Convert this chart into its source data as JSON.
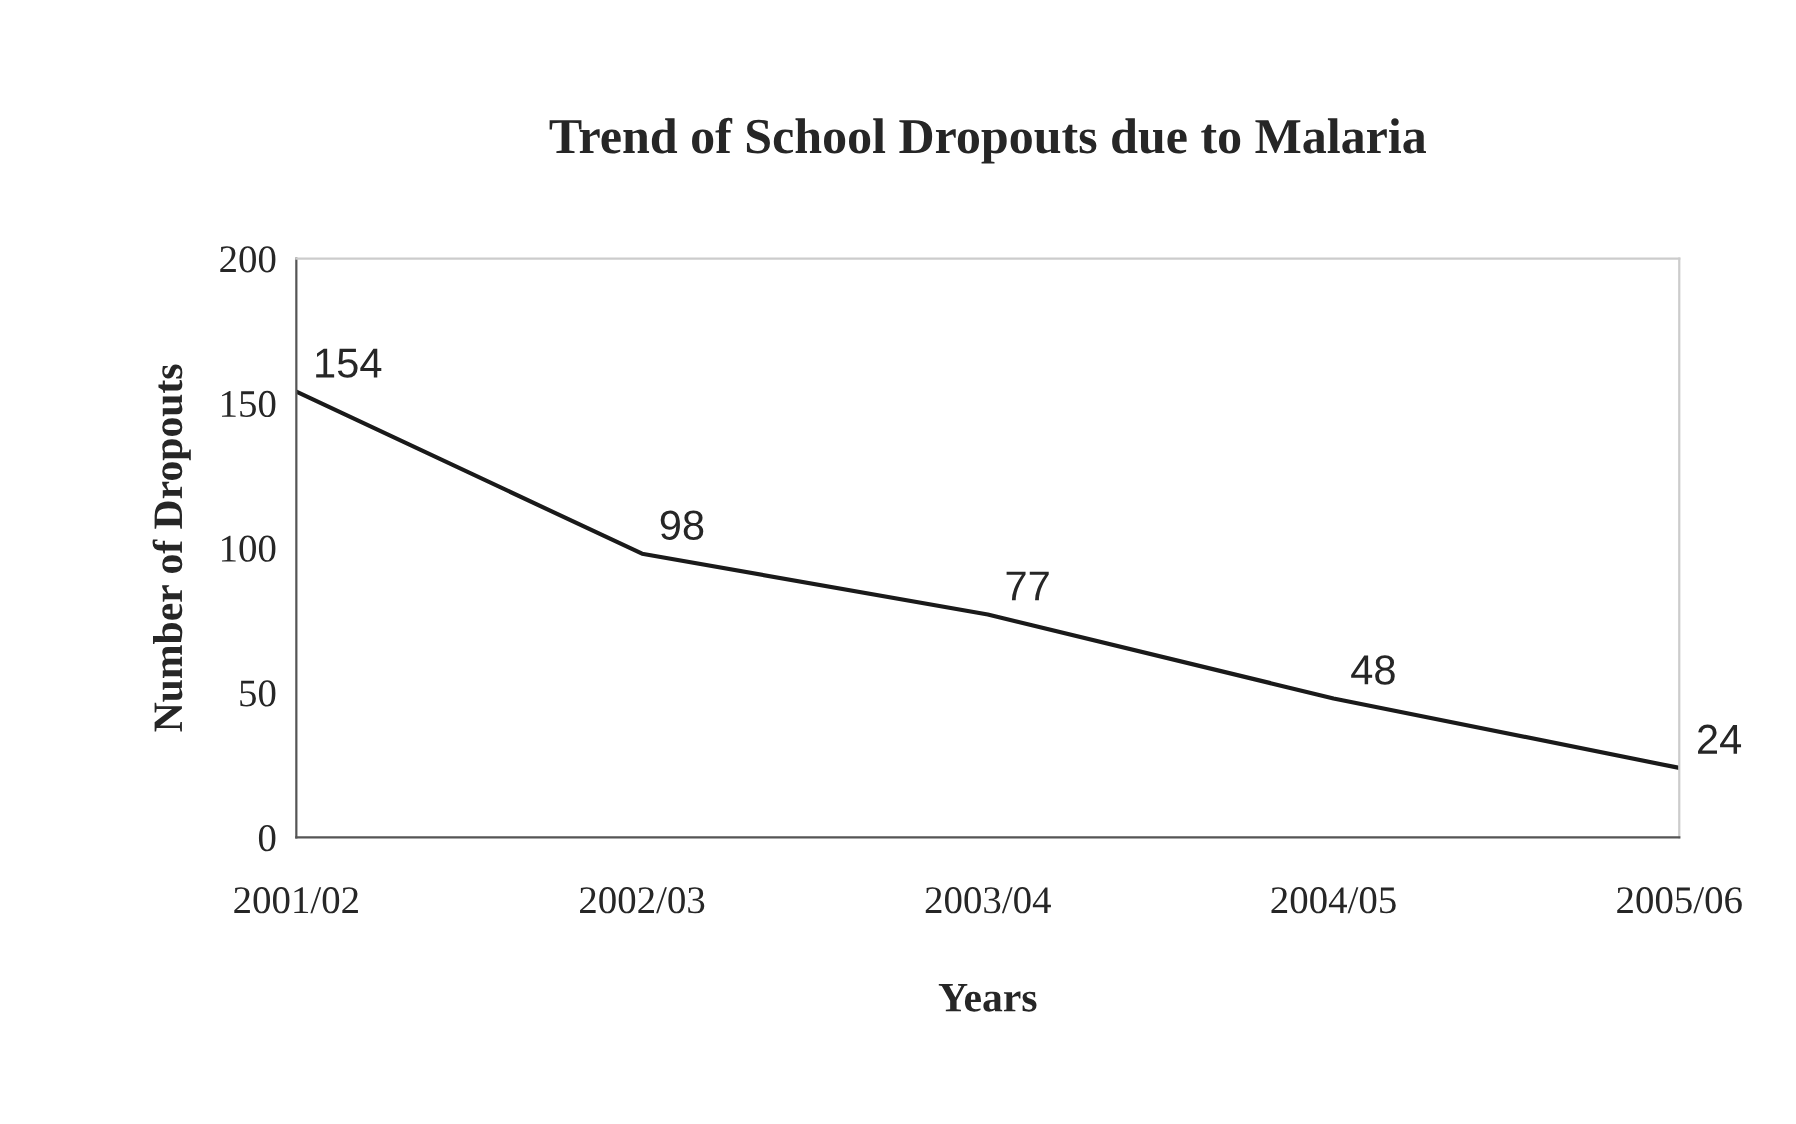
{
  "chart_data": {
    "type": "line",
    "title": "Trend of School Dropouts due to Malaria",
    "xlabel": "Years",
    "ylabel": "Number of Dropouts",
    "categories": [
      "2001/02",
      "2002/03",
      "2003/04",
      "2004/05",
      "2005/06"
    ],
    "series": [
      {
        "color": "#1a1a1a",
        "values": [
          154,
          98,
          77,
          48,
          24
        ]
      }
    ],
    "ylim": [
      0,
      200
    ],
    "yticks": [
      0,
      50,
      100,
      150,
      200
    ],
    "grid": false,
    "marker": "none",
    "line_style": "solid",
    "data_labels": true
  }
}
